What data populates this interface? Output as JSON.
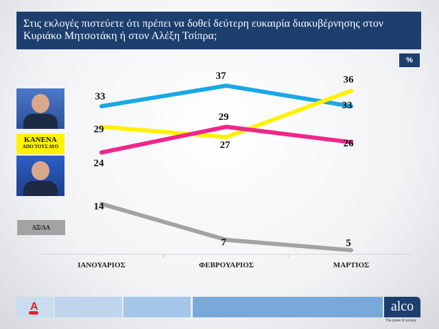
{
  "title": "Στις εκλογές πιστεύετε ότι πρέπει να δοθεί δεύτερη ευκαιρία διακυβέρνησης στον Κυριάκο Μητσοτάκη ή στον Αλέξη Τσίπρα;",
  "unit_badge": "%",
  "legend": {
    "kanena_line1": "ΚΑΝΕΝΑ",
    "kanena_line2": "ΑΠΟ ΤΟΥΣ ΔΥΟ",
    "dxda": "ΔΞ/ΔΑ"
  },
  "footer": {
    "brand": "alco",
    "tagline": "The pulse of society",
    "channel_logo": "A NEWS"
  },
  "chart_data": {
    "type": "line",
    "categories": [
      "ΙΑΝΟΥΑΡΙΟΣ",
      "ΦΕΒΡΟΥΑΡΙΟΣ",
      "ΜΑΡΤΙΟΣ"
    ],
    "series": [
      {
        "name": "Κυριάκος Μητσοτάκης",
        "color": "#1aa7e6",
        "values": [
          33,
          37,
          33
        ]
      },
      {
        "name": "ΚΑΝΕΝΑ ΑΠΟ ΤΟΥΣ ΔΥΟ",
        "color": "#fff200",
        "values": [
          29,
          27,
          36
        ]
      },
      {
        "name": "Αλέξης Τσίπρας",
        "color": "#f0268a",
        "values": [
          24,
          29,
          26
        ]
      },
      {
        "name": "ΔΞ/ΔΑ",
        "color": "#a3a3a3",
        "values": [
          14,
          7,
          5
        ]
      }
    ],
    "grid": false
  }
}
